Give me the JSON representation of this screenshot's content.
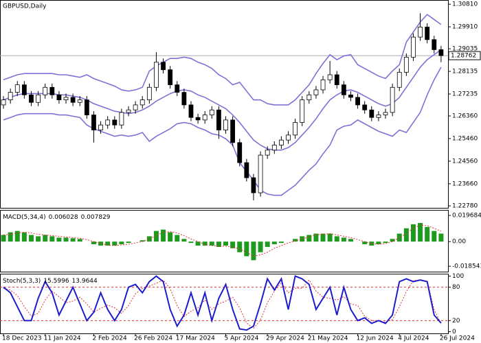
{
  "chart_data": [
    {
      "type": "candlestick",
      "title": "GBPUSD,Daily",
      "xlim": [
        -0.5,
        64
      ],
      "ylim": [
        1.227,
        1.3095
      ],
      "yticks": [
        {
          "value": 1.3081,
          "label": "1.30810"
        },
        {
          "value": 1.2991,
          "label": "1.29910"
        },
        {
          "value": 1.29035,
          "label": "1.29035"
        },
        {
          "value": 1.28135,
          "label": "1.28135"
        },
        {
          "value": 1.27235,
          "label": "1.27235"
        },
        {
          "value": 1.2636,
          "label": "1.26360"
        },
        {
          "value": 1.2546,
          "label": "1.25460"
        },
        {
          "value": 1.2456,
          "label": "1.24560"
        },
        {
          "value": 1.2366,
          "label": "1.23660"
        },
        {
          "value": 1.2278,
          "label": "1.22780"
        }
      ],
      "xticks": [
        {
          "value": 0,
          "label": "18 Dec 2023"
        },
        {
          "value": 6,
          "label": "11 Jan 2024"
        },
        {
          "value": 13,
          "label": "2 Feb 2024"
        },
        {
          "value": 19,
          "label": "26 Feb 2024"
        },
        {
          "value": 25,
          "label": "17 Mar 2024"
        },
        {
          "value": 32,
          "label": "5 Apr 2024"
        },
        {
          "value": 38,
          "label": "29 Apr 2024"
        },
        {
          "value": 44,
          "label": "21 May 2024"
        },
        {
          "value": 51,
          "label": "12 Jun 2024"
        },
        {
          "value": 57,
          "label": "4 Jul 2024"
        },
        {
          "value": 63,
          "label": "26 Jul 2024"
        }
      ],
      "current_price": {
        "value": 1.28762,
        "label": "1.28762"
      },
      "open": [
        1.268,
        1.27,
        1.273,
        1.276,
        1.272,
        1.269,
        1.272,
        1.275,
        1.272,
        1.27,
        1.271,
        1.269,
        1.27,
        1.264,
        1.258,
        1.26,
        1.262,
        1.26,
        1.265,
        1.266,
        1.268,
        1.27,
        1.275,
        1.285,
        1.282,
        1.276,
        1.273,
        1.268,
        1.263,
        1.262,
        1.264,
        1.266,
        1.258,
        1.262,
        1.253,
        1.245,
        1.239,
        1.233,
        1.248,
        1.25,
        1.252,
        1.254,
        1.256,
        1.261,
        1.27,
        1.272,
        1.274,
        1.278,
        1.28,
        1.276,
        1.272,
        1.271,
        1.268,
        1.266,
        1.263,
        1.264,
        1.265,
        1.275,
        1.281,
        1.287,
        1.295,
        1.299,
        1.294,
        1.29
      ],
      "high": [
        1.2715,
        1.2745,
        1.2775,
        1.2775,
        1.2735,
        1.2735,
        1.2765,
        1.2765,
        1.2735,
        1.2725,
        1.2725,
        1.2715,
        1.2715,
        1.2655,
        1.2615,
        1.2635,
        1.2635,
        1.2665,
        1.2675,
        1.2695,
        1.2715,
        1.2765,
        1.289,
        1.2865,
        1.2835,
        1.2775,
        1.2745,
        1.2695,
        1.2645,
        1.2655,
        1.2675,
        1.2675,
        1.2635,
        1.2635,
        1.2545,
        1.2465,
        1.2405,
        1.2495,
        1.2515,
        1.2535,
        1.2555,
        1.2575,
        1.2625,
        1.2715,
        1.2735,
        1.2755,
        1.2795,
        1.2855,
        1.2815,
        1.2775,
        1.2735,
        1.2725,
        1.2695,
        1.2675,
        1.2655,
        1.2665,
        1.2765,
        1.2825,
        1.2885,
        1.2965,
        1.3045,
        1.3005,
        1.2955,
        1.2915
      ],
      "low": [
        1.2665,
        1.2685,
        1.2715,
        1.2705,
        1.2675,
        1.2675,
        1.2705,
        1.2705,
        1.2685,
        1.2685,
        1.2675,
        1.2675,
        1.2625,
        1.253,
        1.2565,
        1.2585,
        1.2585,
        1.2585,
        1.2635,
        1.2645,
        1.2665,
        1.2685,
        1.2735,
        1.2805,
        1.2745,
        1.2715,
        1.2665,
        1.2615,
        1.2605,
        1.2605,
        1.2625,
        1.2545,
        1.2565,
        1.2515,
        1.2435,
        1.2375,
        1.23,
        1.2315,
        1.2465,
        1.2485,
        1.2505,
        1.2525,
        1.2545,
        1.2595,
        1.2685,
        1.2705,
        1.2725,
        1.2765,
        1.2745,
        1.2705,
        1.2695,
        1.2665,
        1.2645,
        1.2615,
        1.2615,
        1.2625,
        1.2635,
        1.2735,
        1.2795,
        1.2855,
        1.2935,
        1.2925,
        1.2885,
        1.285
      ],
      "close": [
        1.27,
        1.273,
        1.276,
        1.272,
        1.269,
        1.272,
        1.275,
        1.272,
        1.27,
        1.271,
        1.269,
        1.27,
        1.264,
        1.258,
        1.26,
        1.262,
        1.26,
        1.265,
        1.266,
        1.268,
        1.27,
        1.275,
        1.285,
        1.282,
        1.276,
        1.273,
        1.268,
        1.263,
        1.262,
        1.264,
        1.266,
        1.258,
        1.262,
        1.253,
        1.245,
        1.239,
        1.233,
        1.248,
        1.25,
        1.252,
        1.254,
        1.256,
        1.261,
        1.27,
        1.272,
        1.274,
        1.278,
        1.28,
        1.276,
        1.272,
        1.271,
        1.268,
        1.266,
        1.263,
        1.264,
        1.265,
        1.275,
        1.281,
        1.287,
        1.295,
        1.299,
        1.294,
        1.29,
        1.28762
      ],
      "bands": {
        "color": "#7b72d6",
        "upper": [
          1.278,
          1.279,
          1.28,
          1.2805,
          1.2805,
          1.2805,
          1.2805,
          1.2805,
          1.28,
          1.28,
          1.2795,
          1.279,
          1.28,
          1.2785,
          1.2775,
          1.2765,
          1.2755,
          1.274,
          1.2735,
          1.274,
          1.275,
          1.2815,
          1.2835,
          1.285,
          1.2865,
          1.2865,
          1.287,
          1.2865,
          1.285,
          1.284,
          1.2825,
          1.28,
          1.2785,
          1.276,
          1.277,
          1.2735,
          1.27,
          1.27,
          1.2685,
          1.268,
          1.268,
          1.268,
          1.27,
          1.273,
          1.276,
          1.2805,
          1.2845,
          1.288,
          1.286,
          1.2875,
          1.288,
          1.284,
          1.2825,
          1.281,
          1.2795,
          1.2785,
          1.2815,
          1.284,
          1.293,
          1.297,
          1.301,
          1.304,
          1.302,
          1.3
        ],
        "middle": [
          1.27,
          1.271,
          1.272,
          1.2725,
          1.2725,
          1.2725,
          1.2725,
          1.2725,
          1.272,
          1.272,
          1.2715,
          1.271,
          1.27,
          1.2685,
          1.2675,
          1.2665,
          1.2655,
          1.265,
          1.2645,
          1.265,
          1.266,
          1.2675,
          1.2695,
          1.271,
          1.2725,
          1.2735,
          1.274,
          1.2735,
          1.272,
          1.271,
          1.2695,
          1.268,
          1.2665,
          1.264,
          1.261,
          1.2575,
          1.254,
          1.252,
          1.2505,
          1.25,
          1.25,
          1.251,
          1.253,
          1.256,
          1.259,
          1.2625,
          1.2665,
          1.27,
          1.272,
          1.2735,
          1.274,
          1.273,
          1.2715,
          1.27,
          1.2685,
          1.2675,
          1.2685,
          1.271,
          1.275,
          1.279,
          1.283,
          1.286,
          1.288,
          1.29
        ],
        "lower": [
          1.262,
          1.263,
          1.264,
          1.2645,
          1.2645,
          1.2645,
          1.2645,
          1.2645,
          1.264,
          1.264,
          1.2635,
          1.263,
          1.26,
          1.2585,
          1.2575,
          1.2565,
          1.2555,
          1.256,
          1.2555,
          1.256,
          1.257,
          1.2535,
          1.2555,
          1.257,
          1.2585,
          1.2605,
          1.261,
          1.2605,
          1.259,
          1.258,
          1.2565,
          1.256,
          1.2545,
          1.252,
          1.245,
          1.2415,
          1.238,
          1.234,
          1.2325,
          1.232,
          1.232,
          1.234,
          1.236,
          1.239,
          1.242,
          1.2445,
          1.2485,
          1.252,
          1.258,
          1.2595,
          1.26,
          1.262,
          1.2605,
          1.259,
          1.2575,
          1.2565,
          1.2555,
          1.258,
          1.257,
          1.261,
          1.265,
          1.272,
          1.278,
          1.283
        ]
      }
    },
    {
      "type": "macd",
      "label": "MACD(5,34,4)",
      "xlim": [
        -0.5,
        64
      ],
      "ylim": [
        -0.0226,
        0.0233
      ],
      "yticks": [
        0.019684,
        {
          "value": 0,
          "label": "0.00"
        },
        -0.018543
      ],
      "color": "#1e9a1e",
      "signal_color": "#e03030",
      "histogram": [
        0.005,
        0.007,
        0.008,
        0.007,
        0.005,
        0.004,
        0.005,
        0.004,
        0.003,
        0.003,
        0.0025,
        0.002,
        0,
        -0.002,
        -0.003,
        -0.003,
        -0.003,
        -0.002,
        -0.001,
        0,
        0.001,
        0.004,
        0.008,
        0.009,
        0.007,
        0.005,
        0.002,
        -0.001,
        -0.003,
        -0.003,
        -0.003,
        -0.004,
        -0.003,
        -0.005,
        -0.008,
        -0.011,
        -0.014,
        -0.008,
        -0.004,
        -0.002,
        -0.001,
        0,
        0.002,
        0.004,
        0.005,
        0.006,
        0.006,
        0.006,
        0.004,
        0.003,
        0.002,
        0,
        -0.002,
        -0.003,
        -0.002,
        -0.001,
        0.002,
        0.006,
        0.01,
        0.013,
        0.014,
        0.011,
        0.008,
        0.006028
      ],
      "signal": [
        0.005,
        0.0055,
        0.0065,
        0.007,
        0.0065,
        0.0055,
        0.005,
        0.0045,
        0.004,
        0.0035,
        0.003,
        0.0025,
        0.0015,
        0,
        -0.0015,
        -0.0025,
        -0.003,
        -0.0025,
        -0.002,
        -0.001,
        0,
        0.002,
        0.0045,
        0.007,
        0.0075,
        0.0065,
        0.0045,
        0.002,
        0,
        -0.002,
        -0.003,
        -0.0035,
        -0.0035,
        -0.004,
        -0.0055,
        -0.008,
        -0.011,
        -0.01,
        -0.008,
        -0.005,
        -0.003,
        -0.001,
        0.0005,
        0.002,
        0.0035,
        0.005,
        0.0055,
        0.006,
        0.005,
        0.004,
        0.003,
        0.0015,
        0,
        -0.0015,
        -0.002,
        -0.0015,
        0,
        0.003,
        0.006,
        0.01,
        0.0125,
        0.012,
        0.01,
        0.007829
      ]
    },
    {
      "type": "stochastic",
      "label": "Stoch(5,3,3)",
      "xlim": [
        -0.5,
        64
      ],
      "ylim": [
        -3,
        103
      ],
      "yticks": [
        100,
        80,
        20,
        0
      ],
      "levels": [
        80,
        20
      ],
      "color": "#1c1ccc",
      "signal_color": "#e03030",
      "main": [
        80,
        70,
        45,
        20,
        20,
        60,
        90,
        70,
        30,
        55,
        80,
        50,
        20,
        35,
        70,
        40,
        20,
        40,
        80,
        85,
        70,
        90,
        100,
        90,
        40,
        10,
        30,
        70,
        30,
        70,
        20,
        60,
        85,
        40,
        5,
        3,
        10,
        50,
        95,
        75,
        95,
        40,
        100,
        95,
        85,
        40,
        60,
        80,
        30,
        80,
        40,
        20,
        25,
        15,
        20,
        15,
        30,
        90,
        95,
        90,
        93,
        90,
        30,
        15.5996
      ],
      "signal": [
        78,
        75,
        65,
        45,
        28,
        33,
        57,
        73,
        63,
        52,
        55,
        62,
        50,
        35,
        42,
        48,
        43,
        33,
        47,
        68,
        78,
        82,
        87,
        93,
        77,
        47,
        27,
        37,
        43,
        57,
        40,
        50,
        55,
        62,
        43,
        16,
        6,
        21,
        52,
        73,
        88,
        70,
        78,
        78,
        93,
        73,
        62,
        60,
        57,
        63,
        50,
        47,
        28,
        20,
        20,
        17,
        22,
        45,
        72,
        92,
        93,
        91,
        40,
        13.9644
      ]
    }
  ]
}
